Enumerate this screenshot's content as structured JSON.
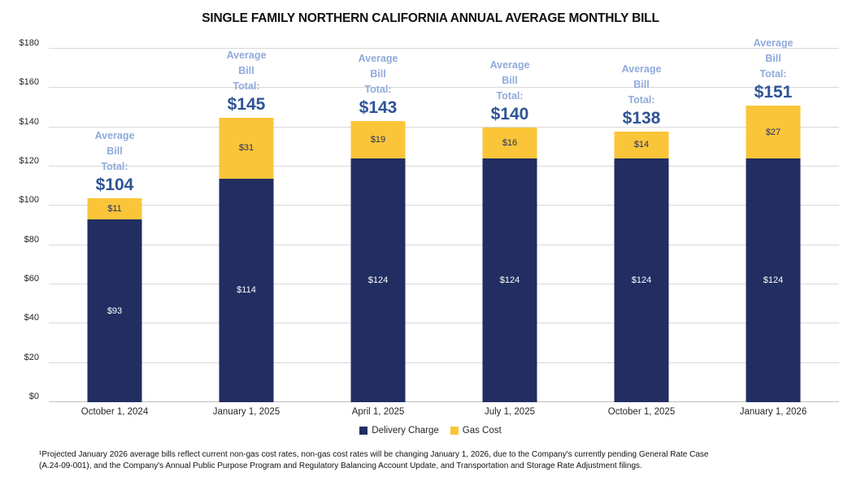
{
  "title": "SINGLE FAMILY NORTHERN CALIFORNIA ANNUAL AVERAGE MONTHLY BILL",
  "chart_data": {
    "type": "bar",
    "stacked": true,
    "title": "SINGLE FAMILY NORTHERN CALIFORNIA ANNUAL AVERAGE MONTHLY BILL",
    "categories": [
      "October 1, 2024",
      "January 1, 2025",
      "April 1, 2025",
      "July 1, 2025",
      "October 1, 2025",
      "January 1, 2026"
    ],
    "series": [
      {
        "name": "Delivery Charge",
        "color": "#222e61",
        "values": [
          93,
          114,
          124,
          124,
          124,
          124
        ]
      },
      {
        "name": "Gas Cost",
        "color": "#fbc539",
        "values": [
          11,
          31,
          19,
          16,
          14,
          27
        ]
      }
    ],
    "totals": [
      104,
      145,
      143,
      140,
      138,
      151
    ],
    "total_caption_lines": [
      "Average",
      "Bill",
      "Total:"
    ],
    "value_prefix": "$",
    "ylim": [
      0,
      180
    ],
    "y_tick_step": 20,
    "grid": true,
    "legend_position": "bottom"
  },
  "colors": {
    "delivery": "#222e61",
    "gas": "#fbc539",
    "caption_light_blue": "#8faadc",
    "total_dark_blue": "#2e5496",
    "gridline": "#d9d9d9"
  },
  "footnote_lines": [
    "¹Projected January 2026 average bills reflect current non-gas cost rates, non-gas cost rates will be changing January 1, 2026, due to the Company's currently pending General Rate Case",
    "(A.24-09-001), and the Company's Annual Public Purpose Program and Regulatory Balancing Account Update, and Transportation and Storage Rate Adjustment filings."
  ]
}
